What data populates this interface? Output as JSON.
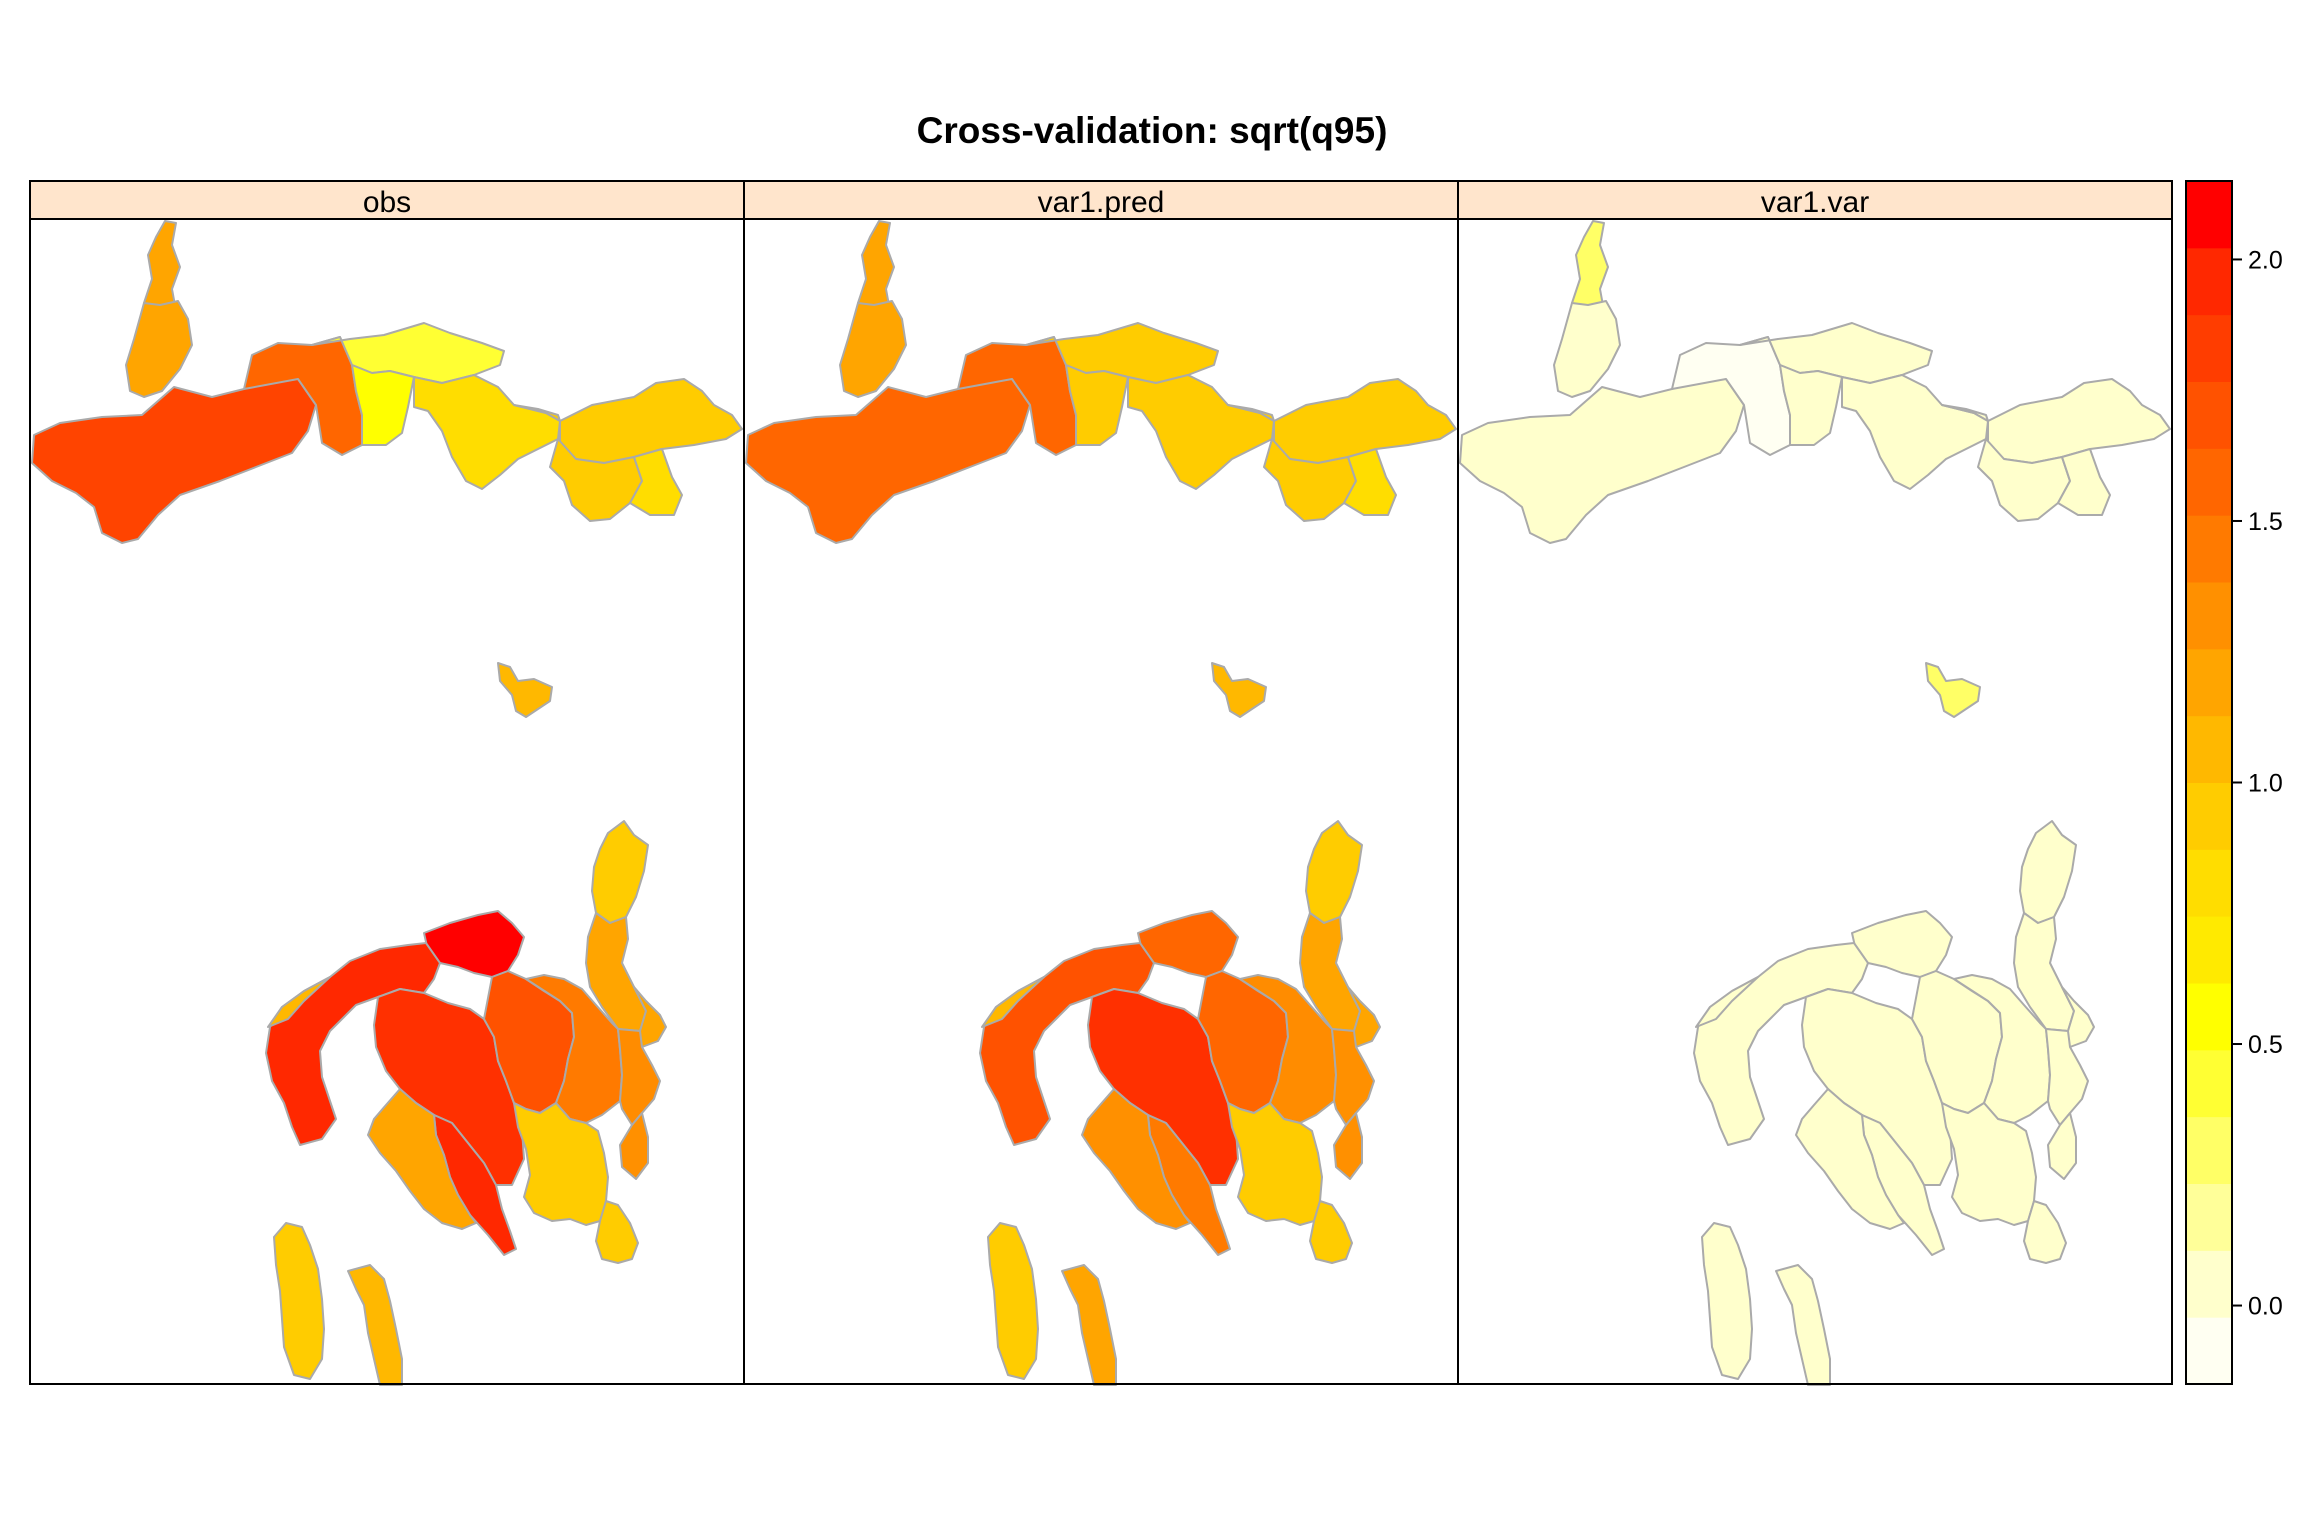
{
  "title": "Cross-validation: sqrt(q95)",
  "panels": [
    {
      "label": "obs"
    },
    {
      "label": "var1.pred"
    },
    {
      "label": "var1.var"
    }
  ],
  "colorbar": {
    "ticks": [
      {
        "value": 0.0,
        "label": "0.0"
      },
      {
        "value": 0.5,
        "label": "0.5"
      },
      {
        "value": 1.0,
        "label": "1.0"
      },
      {
        "value": 1.5,
        "label": "1.5"
      },
      {
        "value": 2.0,
        "label": "2.0"
      }
    ],
    "range": [
      -0.15,
      2.15
    ],
    "levels": [
      "#FFFFF2",
      "#FFFFCC",
      "#FFFF99",
      "#FFFF66",
      "#FFFF33",
      "#FFFF00",
      "#FFEA00",
      "#FFDD00",
      "#FFCC00",
      "#FFB800",
      "#FFA500",
      "#FF9000",
      "#FF7A00",
      "#FF6600",
      "#FF5200",
      "#FF3D00",
      "#FF2800",
      "#FF0000"
    ]
  },
  "region_colors": {
    "obs": {
      "north": [
        "#FFA500",
        "#FFA500",
        "#FF4400",
        "#FF6600",
        "#FFFF33",
        "#FFFF00",
        "#FFDD00",
        "#FFCC00",
        "#FFCC00",
        "#FFDD00",
        "#FFCC00"
      ],
      "island": [
        "#FFB800"
      ],
      "south": [
        "#FFCC00",
        "#FFA500",
        "#FFA500",
        "#FF0000",
        "#FF2800",
        "#FF3000",
        "#FF5200",
        "#FF7A00",
        "#FF8C00",
        "#FF9000",
        "#FF2800",
        "#FFA500",
        "#FFCC00",
        "#FFCC00",
        "#FFCC00",
        "#FFB800",
        "#FFB800"
      ]
    },
    "var1.pred": {
      "north": [
        "#FFA500",
        "#FFA500",
        "#FF6600",
        "#FF6600",
        "#FFCC00",
        "#FFCC00",
        "#FFCC00",
        "#FFCC00",
        "#FFCC00",
        "#FFDD00",
        "#FFCC00"
      ],
      "island": [
        "#FFB800"
      ],
      "south": [
        "#FFCC00",
        "#FFA500",
        "#FFA500",
        "#FF6600",
        "#FF5200",
        "#FF3000",
        "#FF6600",
        "#FF8C00",
        "#FF9000",
        "#FF9000",
        "#FF7A00",
        "#FF9000",
        "#FFCC00",
        "#FFCC00",
        "#FFCC00",
        "#FFA500",
        "#FFB800"
      ]
    },
    "var1.var": {
      "north": [
        "#FFFF66",
        "#FFFFCC",
        "#FFFFCC",
        "#FFFFF2",
        "#FFFFCC",
        "#FFFFCC",
        "#FFFFCC",
        "#FFFFCC",
        "#FFFFCC",
        "#FFFFCC",
        "#FFFFCC"
      ],
      "island": [
        "#FFFF66"
      ],
      "south": [
        "#FFFFCC",
        "#FFFFCC",
        "#FFFFCC",
        "#FFFFCC",
        "#FFFFCC",
        "#FFFFCC",
        "#FFFFCC",
        "#FFFFCC",
        "#FFFFCC",
        "#FFFFCC",
        "#FFFFCC",
        "#FFFFCC",
        "#FFFFCC",
        "#FFFFCC",
        "#FFFFCC",
        "#FFFFCC",
        "#FFFFCC"
      ]
    }
  },
  "colors": {
    "strip_bg": "#FFE5CC",
    "region_border": "#AAAAAA",
    "frame": "#000000"
  }
}
